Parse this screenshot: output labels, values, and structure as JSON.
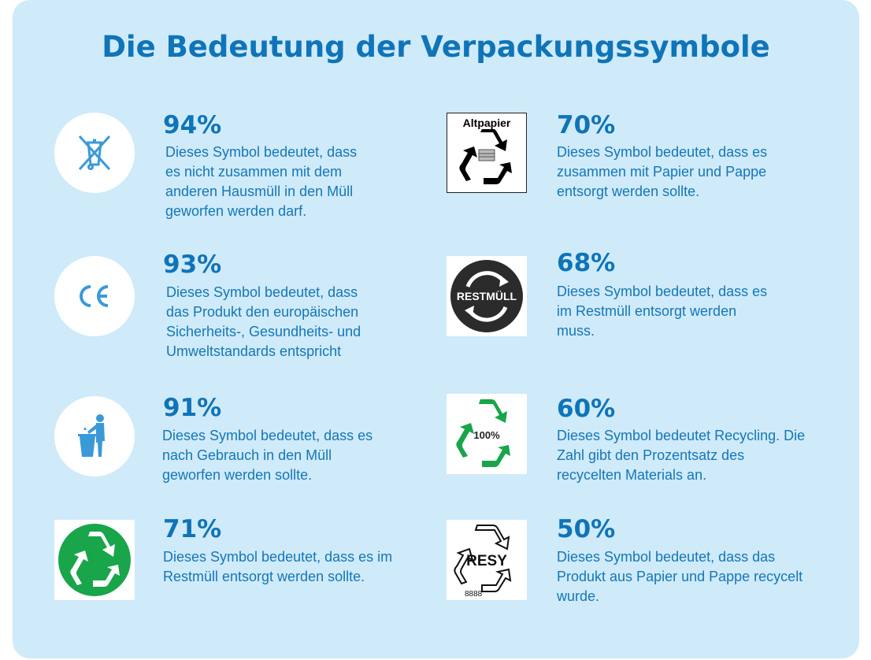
{
  "title": "Die Bedeutung der Verpackungssymbole",
  "colors": {
    "panel": "#cfeaf9",
    "accent": "#0f74b8",
    "icon_blue": "#3a9ad8",
    "recycle_green": "#19a54a"
  },
  "items": [
    {
      "icon": "crossed-out-bin-icon",
      "percent": "94%",
      "text": "Dieses Symbol bedeutet, dass\nes nicht zusammen mit dem\nanderen Hausmüll in den Müll\ngeworfen werden darf."
    },
    {
      "icon": "ce-mark-icon",
      "percent": "93%",
      "text": "Dieses Symbol bedeutet, dass\ndas Produkt den europäischen\nSicherheits-, Gesundheits- und\nUmweltstandards entspricht"
    },
    {
      "icon": "person-binning-trash-icon",
      "percent": "91%",
      "text": "Dieses Symbol bedeutet, dass es\nnach Gebrauch in den Müll\ngeworfen werden sollte."
    },
    {
      "icon": "green-recycling-circle-icon",
      "percent": "71%",
      "text": "Dieses Symbol bedeutet, dass es im\nRestmüll entsorgt werden sollte."
    },
    {
      "icon": "altpapier-recycling-icon",
      "icon_label": "Altpapier",
      "percent": "70%",
      "text": "Dieses Symbol bedeutet, dass es\nzusammen mit Papier und Pappe\nentsorgt werden sollte."
    },
    {
      "icon": "restmuell-circle-icon",
      "icon_label": "RESTMÜLL",
      "percent": "68%",
      "text": "Dieses Symbol bedeutet, dass es\nim Restmüll entsorgt werden\nmuss."
    },
    {
      "icon": "recycling-100-percent-icon",
      "icon_label": "100%",
      "percent": "60%",
      "text": "Dieses Symbol bedeutet Recycling. Die\nZahl gibt den Prozentsatz des\nrecycelten Materials an."
    },
    {
      "icon": "resy-icon",
      "icon_label": "RESY",
      "icon_sublabel": "8888",
      "percent": "50%",
      "text": "Dieses Symbol bedeutet, dass das\nProdukt aus Papier und Pappe recycelt\nwurde."
    }
  ]
}
